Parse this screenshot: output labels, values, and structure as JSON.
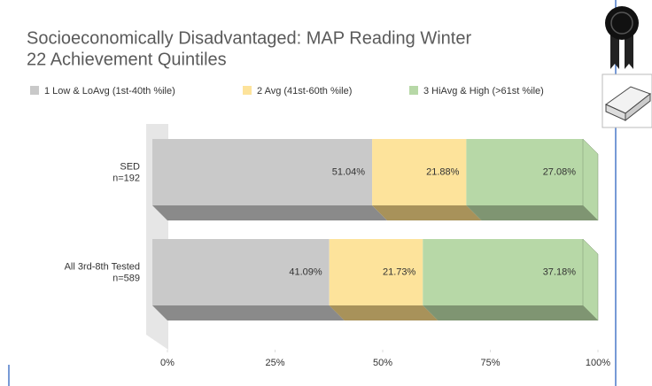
{
  "chart_data": {
    "type": "bar3d_stacked_horizontal",
    "title": [
      "Socioeconomically Disadvantaged: MAP Reading Winter",
      "22 Achievement Quintiles"
    ],
    "categories": [
      [
        "SED",
        "n=192"
      ],
      [
        "All 3rd-8th Tested",
        "n=589"
      ]
    ],
    "series": [
      {
        "name": "1 Low & LoAvg (1st-40th %ile)",
        "color": "#c9c9c9",
        "side_color": "#8a8a8a",
        "values": [
          51.04,
          41.09
        ],
        "value_labels": [
          "51.04%",
          "41.09%"
        ]
      },
      {
        "name": "2 Avg (41st-60th %ile)",
        "color": "#fde39b",
        "side_color": "#a8925a",
        "values": [
          21.88,
          21.73
        ],
        "value_labels": [
          "21.88%",
          "21.73%"
        ]
      },
      {
        "name": "3 HiAvg & High (>61st %ile)",
        "color": "#b7d8a7",
        "side_color": "#7f9572",
        "values": [
          27.08,
          37.18
        ],
        "value_labels": [
          "27.08%",
          "37.18%"
        ]
      }
    ],
    "xlim": [
      0,
      100
    ],
    "xticks": [
      {
        "value": 0,
        "label": "0%"
      },
      {
        "value": 25,
        "label": "25%"
      },
      {
        "value": 50,
        "label": "50%"
      },
      {
        "value": 75,
        "label": "75%"
      },
      {
        "value": 100,
        "label": "100%"
      }
    ],
    "legend": "top"
  }
}
